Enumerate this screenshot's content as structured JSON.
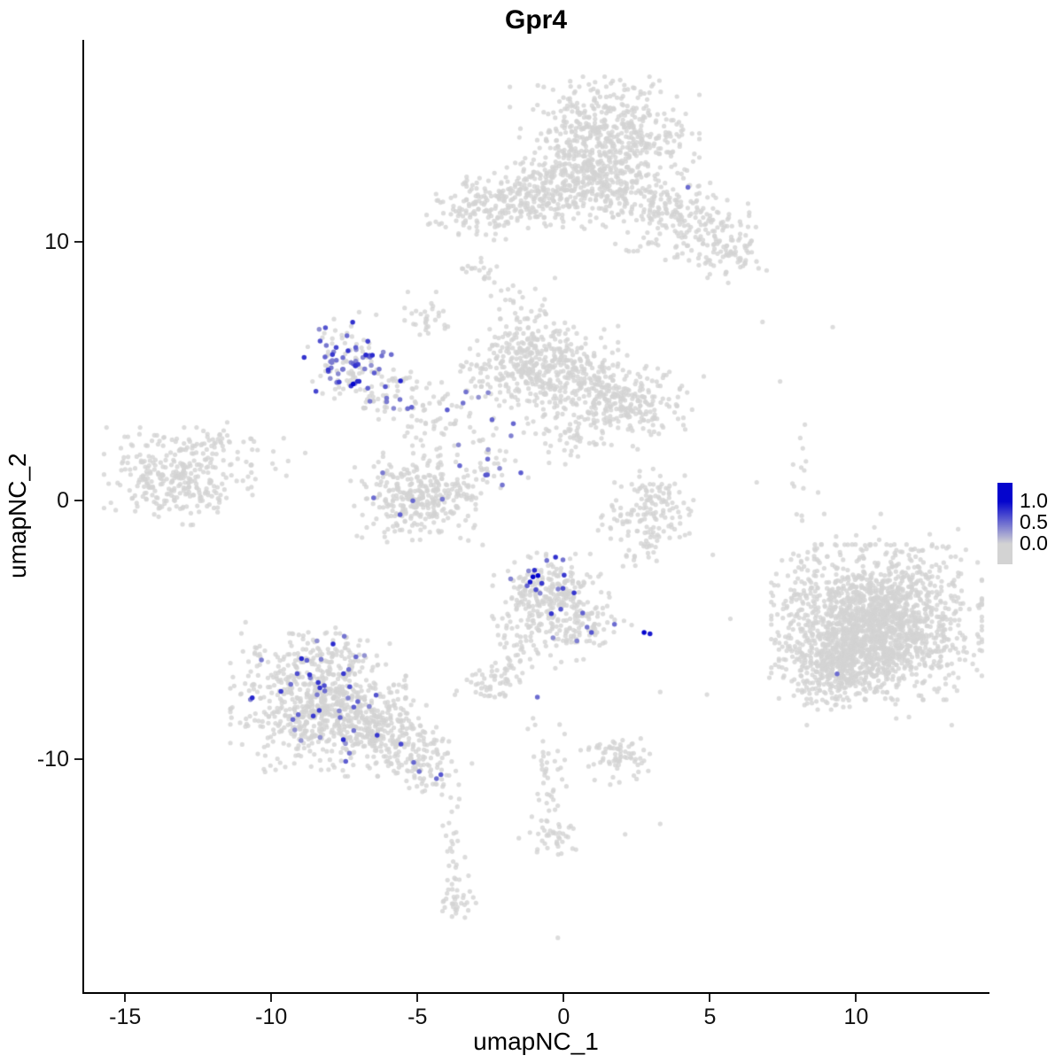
{
  "chart_data": {
    "type": "scatter",
    "title": "Gpr4",
    "xlabel": "umapNC_1",
    "ylabel": "umapNC_2",
    "xlim": [
      -16.4,
      14.5
    ],
    "ylim": [
      -19.0,
      17.8
    ],
    "x_ticks": [
      -15,
      -10,
      -5,
      0,
      5,
      10
    ],
    "y_ticks": [
      -10,
      0,
      10
    ],
    "grid": false,
    "legend": {
      "position": "right",
      "labels": [
        "1.0",
        "0.5",
        "0.0"
      ],
      "low_color": "#d3d3d3",
      "high_color": "#0505cd"
    },
    "point": {
      "radius": 2.6,
      "alpha": 0.8,
      "zero_color": "#d3d3d3"
    },
    "seed": 42,
    "clusters": [
      {
        "name": "top-main",
        "cx": 1.4,
        "cy": 14.1,
        "sx": 1.35,
        "sy": 0.95,
        "rot": 0,
        "n": 520,
        "expr_frac": 0
      },
      {
        "name": "top-main-lower",
        "cx": 0.8,
        "cy": 12.3,
        "sx": 0.95,
        "sy": 0.75,
        "rot": 0,
        "n": 230,
        "expr_frac": 0
      },
      {
        "name": "top-left-lobe",
        "cx": -2.2,
        "cy": 11.4,
        "sx": 1.05,
        "sy": 0.55,
        "rot": 0.1,
        "n": 210,
        "expr_frac": 0
      },
      {
        "name": "top-bridge",
        "cx": -0.8,
        "cy": 11.9,
        "sx": 0.7,
        "sy": 0.5,
        "rot": 0,
        "n": 90,
        "expr_frac": 0
      },
      {
        "name": "top-right-arm",
        "cx": 3.6,
        "cy": 11.1,
        "sx": 1.25,
        "sy": 0.8,
        "rot": -0.45,
        "n": 260,
        "expr_frac": 0
      },
      {
        "name": "top-right-tip",
        "cx": 5.5,
        "cy": 9.7,
        "sx": 0.6,
        "sy": 0.55,
        "rot": 0,
        "n": 80,
        "expr_frac": 0
      },
      {
        "name": "top-satellite",
        "cx": -2.9,
        "cy": 8.8,
        "sx": 0.35,
        "sy": 0.3,
        "rot": 0,
        "n": 20,
        "expr_frac": 0
      },
      {
        "name": "top-trail",
        "cx": -1.5,
        "cy": 7.5,
        "sx": 0.45,
        "sy": 0.4,
        "rot": 0,
        "n": 20,
        "expr_frac": 0
      },
      {
        "name": "center-north-bridge",
        "cx": -1.2,
        "cy": 6.5,
        "sx": 0.5,
        "sy": 0.8,
        "rot": 0,
        "n": 25,
        "expr_frac": 0
      },
      {
        "name": "mid-upper-blob",
        "cx": -4.6,
        "cy": 7.1,
        "sx": 0.35,
        "sy": 0.4,
        "rot": 0,
        "n": 30,
        "expr_frac": 0
      },
      {
        "name": "mid-purple",
        "cx": -7.3,
        "cy": 5.3,
        "sx": 0.6,
        "sy": 0.75,
        "rot": 0.3,
        "n": 130,
        "expr_frac": 0.42,
        "expr_lo": 0.3,
        "expr_hi": 0.85
      },
      {
        "name": "mid-purple-trail",
        "cx": -5.9,
        "cy": 4.2,
        "sx": 0.6,
        "sy": 0.45,
        "rot": 0.5,
        "n": 60,
        "expr_frac": 0.12,
        "expr_lo": 0.3,
        "expr_hi": 0.7
      },
      {
        "name": "mid-chain",
        "cx": -4.2,
        "cy": 3.3,
        "sx": 0.75,
        "sy": 0.5,
        "rot": 0.3,
        "n": 55,
        "expr_frac": 0.05,
        "expr_lo": 0.3,
        "expr_hi": 0.6
      },
      {
        "name": "center-main",
        "cx": -0.9,
        "cy": 5.1,
        "sx": 1.15,
        "sy": 0.8,
        "rot": 0,
        "n": 430,
        "expr_frac": 0
      },
      {
        "name": "center-right",
        "cx": 2.0,
        "cy": 3.9,
        "sx": 1.0,
        "sy": 0.7,
        "rot": -0.3,
        "n": 290,
        "expr_frac": 0
      },
      {
        "name": "center-south",
        "cx": 0.2,
        "cy": 2.6,
        "sx": 0.8,
        "sy": 0.5,
        "rot": 0,
        "n": 60,
        "expr_frac": 0
      },
      {
        "name": "center-left-scatter",
        "cx": -2.5,
        "cy": 1.7,
        "sx": 0.6,
        "sy": 0.85,
        "rot": 0,
        "n": 45,
        "expr_frac": 0.07,
        "expr_lo": 0.3,
        "expr_hi": 0.6
      },
      {
        "name": "lower-mid",
        "cx": -4.9,
        "cy": 0.2,
        "sx": 1.05,
        "sy": 0.8,
        "rot": 0,
        "n": 340,
        "expr_frac": 0.006,
        "expr_lo": 0.3,
        "expr_hi": 0.6
      },
      {
        "name": "crescent",
        "cx": 2.9,
        "cy": -0.3,
        "sx": 0.8,
        "sy": 0.6,
        "rot": 0.4,
        "n": 140,
        "expr_frac": 0
      },
      {
        "name": "crescent-south",
        "cx": 2.8,
        "cy": -1.8,
        "sx": 0.5,
        "sy": 0.5,
        "rot": 0,
        "n": 20,
        "expr_frac": 0
      },
      {
        "name": "left-main",
        "cx": -13.2,
        "cy": 0.9,
        "sx": 1.05,
        "sy": 0.8,
        "rot": 0,
        "n": 310,
        "expr_frac": 0
      },
      {
        "name": "left-satellite",
        "cx": -11.9,
        "cy": 2.3,
        "sx": 0.55,
        "sy": 0.3,
        "rot": 0,
        "n": 25,
        "expr_frac": 0
      },
      {
        "name": "left-outliers",
        "cx": -9.9,
        "cy": 2.2,
        "sx": 0.6,
        "sy": 0.4,
        "rot": 0,
        "n": 6,
        "expr_frac": 0
      },
      {
        "name": "left-bridge",
        "cx": -10.5,
        "cy": 0.9,
        "sx": 0.8,
        "sy": 0.5,
        "rot": 0,
        "n": 8,
        "expr_frac": 0
      },
      {
        "name": "cb-main",
        "cx": -0.6,
        "cy": -3.6,
        "sx": 0.85,
        "sy": 0.65,
        "rot": 0.45,
        "n": 250,
        "expr_frac": 0.05,
        "expr_lo": 0.3,
        "expr_hi": 0.8
      },
      {
        "name": "cb-lower",
        "cx": 0.5,
        "cy": -4.9,
        "sx": 0.7,
        "sy": 0.5,
        "rot": 0.45,
        "n": 120,
        "expr_frac": 0.03,
        "expr_lo": 0.3,
        "expr_hi": 0.7
      },
      {
        "name": "cb-tail",
        "cx": -1.6,
        "cy": -5.7,
        "sx": 0.35,
        "sy": 0.6,
        "rot": 0,
        "n": 35,
        "expr_frac": 0
      },
      {
        "name": "small-grey",
        "cx": -2.4,
        "cy": -7.0,
        "sx": 0.55,
        "sy": 0.4,
        "rot": 0,
        "n": 55,
        "expr_frac": 0
      },
      {
        "name": "right-halo",
        "cx": 10.5,
        "cy": -4.6,
        "sx": 2.0,
        "sy": 1.7,
        "rot": 0,
        "n": 120,
        "expr_frac": 0
      },
      {
        "name": "right-main",
        "cx": 10.7,
        "cy": -4.7,
        "sx": 1.5,
        "sy": 1.25,
        "rot": 0,
        "n": 1600,
        "expr_frac": 0
      },
      {
        "name": "right-lobe",
        "cx": 9.4,
        "cy": -6.4,
        "sx": 0.85,
        "sy": 0.7,
        "rot": 0,
        "n": 350,
        "expr_frac": 0
      },
      {
        "name": "right-top-sparse",
        "cx": 8.6,
        "cy": -2.5,
        "sx": 0.55,
        "sy": 0.6,
        "rot": 0,
        "n": 25,
        "expr_frac": 0
      },
      {
        "name": "right-column",
        "cx": 8.1,
        "cy": 0.8,
        "sx": 0.25,
        "sy": 1.1,
        "rot": 0,
        "n": 14,
        "expr_frac": 0
      },
      {
        "name": "bl-main",
        "cx": -8.4,
        "cy": -7.9,
        "sx": 1.25,
        "sy": 1.15,
        "rot": 0,
        "n": 720,
        "expr_frac": 0.065,
        "expr_lo": 0.3,
        "expr_hi": 0.85
      },
      {
        "name": "bl-east",
        "cx": -6.2,
        "cy": -8.9,
        "sx": 0.85,
        "sy": 0.7,
        "rot": -0.4,
        "n": 230,
        "expr_frac": 0.015,
        "expr_lo": 0.3,
        "expr_hi": 0.6
      },
      {
        "name": "bl-trail",
        "cx": -4.8,
        "cy": -10.2,
        "sx": 0.6,
        "sy": 0.5,
        "rot": -0.5,
        "n": 90,
        "expr_frac": 0.03,
        "expr_lo": 0.4,
        "expr_hi": 0.7
      },
      {
        "name": "bl-north-sparse",
        "cx": -8.6,
        "cy": -5.9,
        "sx": 0.95,
        "sy": 0.5,
        "rot": 0,
        "n": 60,
        "expr_frac": 0.08,
        "expr_lo": 0.3,
        "expr_hi": 0.7
      },
      {
        "name": "south-chain",
        "cx": -3.8,
        "cy": -13.3,
        "sx": 0.2,
        "sy": 1.3,
        "rot": 0,
        "n": 28,
        "expr_frac": 0
      },
      {
        "name": "south-clump",
        "cx": -3.6,
        "cy": -15.4,
        "sx": 0.35,
        "sy": 0.45,
        "rot": 0,
        "n": 30,
        "expr_frac": 0
      },
      {
        "name": "mid-south-chain",
        "cx": -0.6,
        "cy": -10.6,
        "sx": 0.3,
        "sy": 1.2,
        "rot": 0,
        "n": 40,
        "expr_frac": 0
      },
      {
        "name": "mid-south-clump",
        "cx": -0.4,
        "cy": -12.9,
        "sx": 0.5,
        "sy": 0.4,
        "rot": 0,
        "n": 40,
        "expr_frac": 0
      },
      {
        "name": "south-right-clump",
        "cx": 1.9,
        "cy": -9.9,
        "sx": 0.55,
        "sy": 0.45,
        "rot": 0,
        "n": 70,
        "expr_frac": 0
      }
    ],
    "singles": [
      [
        3.3,
        -7.4
      ],
      [
        4.9,
        -7.5
      ],
      [
        3.3,
        -12.5
      ],
      [
        2.1,
        -12.9
      ],
      [
        7.4,
        4.6
      ],
      [
        9.2,
        6.7
      ],
      [
        6.6,
        0.7
      ],
      [
        -0.2,
        -16.9
      ],
      [
        2.4,
        -2.3
      ],
      [
        5.1,
        -2.1
      ],
      [
        -0.3,
        8.6
      ],
      [
        6.8,
        6.9
      ]
    ],
    "expressed_points": [
      [
        -1.05,
        -2.95,
        1.0
      ],
      [
        -0.88,
        -2.9,
        1.0
      ],
      [
        -1.15,
        -3.15,
        0.9
      ],
      [
        -0.95,
        -3.45,
        0.65
      ],
      [
        -1.25,
        -3.3,
        0.55
      ],
      [
        -0.75,
        -3.2,
        0.75
      ],
      [
        -1.0,
        -2.7,
        0.8
      ],
      [
        -0.1,
        -4.2,
        0.6
      ],
      [
        0.65,
        -4.35,
        0.55
      ],
      [
        0.95,
        -5.1,
        0.6
      ],
      [
        0.8,
        -4.9,
        0.45
      ],
      [
        2.75,
        -5.1,
        1.0
      ],
      [
        2.95,
        -5.15,
        0.9
      ],
      [
        -0.9,
        -7.6,
        0.5
      ],
      [
        9.35,
        -6.7,
        0.5
      ],
      [
        4.25,
        12.1,
        0.5
      ],
      [
        -4.2,
        -10.6,
        0.6
      ],
      [
        -4.35,
        -10.75,
        0.5
      ],
      [
        -6.5,
        0.1,
        0.5
      ],
      [
        -2.6,
        1.6,
        0.5
      ],
      [
        -2.1,
        0.6,
        0.45
      ],
      [
        -1.8,
        2.5,
        0.4
      ],
      [
        -5.2,
        3.6,
        0.55
      ],
      [
        -6.1,
        4.4,
        0.6
      ],
      [
        -5.6,
        3.9,
        0.45
      ],
      [
        -7.2,
        4.5,
        1.0
      ],
      [
        -7.0,
        4.6,
        0.8
      ],
      [
        -4.15,
        0.05,
        0.45
      ]
    ]
  }
}
